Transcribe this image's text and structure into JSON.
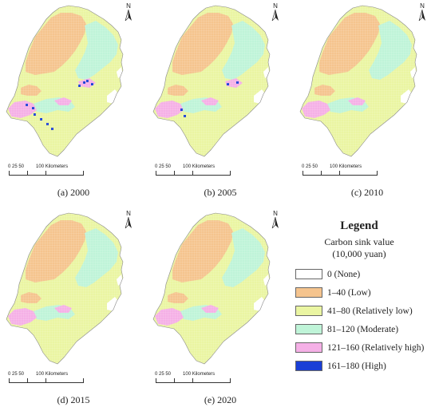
{
  "panels": [
    {
      "id": "a",
      "caption": "(a) 2000",
      "scale_ticks": "0  25  50",
      "scale_unit": "100 Kilometers",
      "north": "N",
      "variant": "high"
    },
    {
      "id": "b",
      "caption": "(b) 2005",
      "scale_ticks": "0  25  50",
      "scale_unit": "100 Kilometers",
      "north": "N",
      "variant": "mid"
    },
    {
      "id": "c",
      "caption": "(c) 2010",
      "scale_ticks": "0  25  50",
      "scale_unit": "100 Kilometers",
      "north": "N",
      "variant": "low"
    },
    {
      "id": "d",
      "caption": "(d) 2015",
      "scale_ticks": "0  25  50",
      "scale_unit": "100 Kilometers",
      "north": "N",
      "variant": "low"
    },
    {
      "id": "e",
      "caption": "(e) 2020",
      "scale_ticks": "0  25  50",
      "scale_unit": "100 Kilometers",
      "north": "N",
      "variant": "low"
    }
  ],
  "legend": {
    "title": "Legend",
    "subtitle_line1": "Carbon sink value",
    "subtitle_line2": "(10,000 yuan)",
    "items": [
      {
        "label": "0 (None)",
        "color": "#ffffff"
      },
      {
        "label": "1–40 (Low)",
        "color": "#f5c48e"
      },
      {
        "label": "41–80 (Relatively low)",
        "color": "#eaf5a2"
      },
      {
        "label": "81–120 (Moderate)",
        "color": "#bff4d8"
      },
      {
        "label": "121–160 (Relatively high)",
        "color": "#f5b0e6"
      },
      {
        "label": "161–180 (High)",
        "color": "#1a3fd6"
      }
    ]
  }
}
